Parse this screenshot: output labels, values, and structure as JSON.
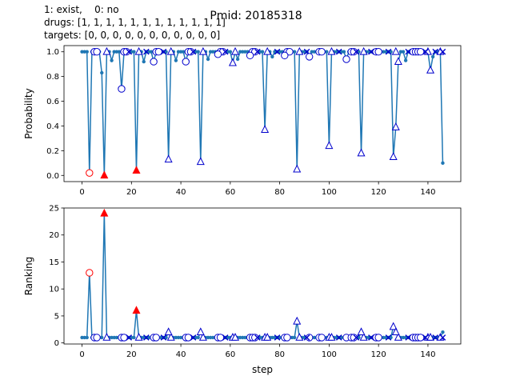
{
  "header": {
    "line1": "1: exist,    0: no",
    "line2": "drugs: [1, 1, 1, 1, 1, 1, 1, 1, 1, 1, 1, 1]",
    "line3": "targets: [0, 0, 0, 0, 0, 0, 0, 0, 0, 0, 0]",
    "title": "Pmid: 20185318"
  },
  "colors": {
    "line": "#1f77b4",
    "marker_blue": "#0000cc",
    "marker_red": "#ff0000"
  },
  "chart_data": [
    {
      "type": "line",
      "ylabel": "Probability",
      "xlabel": "",
      "xlim": [
        -7.3,
        153.3
      ],
      "ylim": [
        -0.05,
        1.05
      ],
      "xticks": [
        0,
        20,
        40,
        60,
        80,
        100,
        120,
        140
      ],
      "yticks": [
        0.0,
        0.2,
        0.4,
        0.6,
        0.8,
        1.0
      ],
      "ytick_labels": [
        "0.0",
        "0.2",
        "0.4",
        "0.6",
        "0.8",
        "1.0"
      ],
      "dips": [
        [
          3,
          0.02
        ],
        [
          8,
          0.83
        ],
        [
          9,
          0.0
        ],
        [
          12,
          0.93
        ],
        [
          16,
          0.7
        ],
        [
          22,
          0.04
        ],
        [
          25,
          0.92
        ],
        [
          29,
          0.92
        ],
        [
          35,
          0.13
        ],
        [
          38,
          0.93
        ],
        [
          42,
          0.92
        ],
        [
          48,
          0.11
        ],
        [
          51,
          0.94
        ],
        [
          55,
          0.98
        ],
        [
          61,
          0.91
        ],
        [
          63,
          0.94
        ],
        [
          68,
          0.97
        ],
        [
          74,
          0.37
        ],
        [
          77,
          0.96
        ],
        [
          82,
          0.97
        ],
        [
          87,
          0.05
        ],
        [
          92,
          0.96
        ],
        [
          100,
          0.24
        ],
        [
          107,
          0.94
        ],
        [
          113,
          0.18
        ],
        [
          126,
          0.15
        ],
        [
          127,
          0.39
        ],
        [
          128,
          0.92
        ],
        [
          131,
          0.93
        ],
        [
          141,
          0.85
        ],
        [
          142,
          0.96
        ],
        [
          146,
          0.1
        ]
      ],
      "markers": [
        {
          "shape": "circle",
          "color": "red",
          "x": 3,
          "y": 0.02
        },
        {
          "shape": "triangle",
          "color": "red",
          "x": 9,
          "y": 0.0
        },
        {
          "shape": "triangle",
          "color": "red",
          "x": 22,
          "y": 0.04
        },
        {
          "shape": "circle",
          "color": "blue",
          "x": 16,
          "y": 0.7
        },
        {
          "shape": "circle",
          "color": "blue",
          "x": 29,
          "y": 0.92
        },
        {
          "shape": "circle",
          "color": "blue",
          "x": 42,
          "y": 0.92
        },
        {
          "shape": "circle",
          "color": "blue",
          "x": 55,
          "y": 0.98
        },
        {
          "shape": "circle",
          "color": "blue",
          "x": 68,
          "y": 0.97
        },
        {
          "shape": "circle",
          "color": "blue",
          "x": 82,
          "y": 0.97
        },
        {
          "shape": "circle",
          "color": "blue",
          "x": 92,
          "y": 0.96
        },
        {
          "shape": "circle",
          "color": "blue",
          "x": 107,
          "y": 0.94
        },
        {
          "shape": "triangle",
          "color": "blue",
          "x": 35,
          "y": 0.13
        },
        {
          "shape": "triangle",
          "color": "blue",
          "x": 48,
          "y": 0.11
        },
        {
          "shape": "triangle",
          "color": "blue",
          "x": 61,
          "y": 0.91
        },
        {
          "shape": "triangle",
          "color": "blue",
          "x": 74,
          "y": 0.37
        },
        {
          "shape": "triangle",
          "color": "blue",
          "x": 87,
          "y": 0.05
        },
        {
          "shape": "triangle",
          "color": "blue",
          "x": 100,
          "y": 0.24
        },
        {
          "shape": "triangle",
          "color": "blue",
          "x": 113,
          "y": 0.18
        },
        {
          "shape": "triangle",
          "color": "blue",
          "x": 126,
          "y": 0.15
        },
        {
          "shape": "triangle",
          "color": "blue",
          "x": 127,
          "y": 0.39
        },
        {
          "shape": "triangle",
          "color": "blue",
          "x": 128,
          "y": 0.92
        },
        {
          "shape": "triangle",
          "color": "blue",
          "x": 141,
          "y": 0.85
        }
      ],
      "top_markers": [
        {
          "shape": "circle",
          "xs": [
            5,
            6,
            17,
            18,
            30,
            31,
            43,
            44,
            56,
            57,
            69,
            70,
            83,
            84,
            96,
            97,
            109,
            110,
            119,
            120,
            134,
            135,
            136,
            137
          ]
        },
        {
          "shape": "triangle",
          "xs": [
            10,
            23,
            36,
            49,
            62,
            75,
            88,
            101,
            114,
            127,
            140,
            145
          ]
        },
        {
          "shape": "x",
          "xs": [
            19,
            26,
            33,
            45,
            58,
            71,
            79,
            91,
            104,
            111,
            117,
            124,
            132,
            139,
            143,
            146
          ]
        }
      ]
    },
    {
      "type": "line",
      "ylabel": "Ranking",
      "xlabel": "step",
      "xlim": [
        -7.3,
        153.3
      ],
      "ylim": [
        -0.2,
        25.0
      ],
      "xticks": [
        0,
        20,
        40,
        60,
        80,
        100,
        120,
        140
      ],
      "yticks": [
        0,
        5,
        10,
        15,
        20,
        25
      ],
      "ytick_labels": [
        "0",
        "5",
        "10",
        "15",
        "20",
        "25"
      ],
      "peaks": [
        [
          3,
          13
        ],
        [
          9,
          24
        ],
        [
          22,
          6
        ],
        [
          35,
          2
        ],
        [
          48,
          2
        ],
        [
          87,
          4
        ],
        [
          113,
          2
        ],
        [
          126,
          3
        ],
        [
          127,
          2
        ],
        [
          146,
          2
        ]
      ],
      "markers": [
        {
          "shape": "circle",
          "color": "red",
          "x": 3,
          "y": 13
        },
        {
          "shape": "triangle",
          "color": "red",
          "x": 9,
          "y": 24
        },
        {
          "shape": "triangle",
          "color": "red",
          "x": 22,
          "y": 6
        },
        {
          "shape": "triangle",
          "color": "blue",
          "x": 35,
          "y": 2
        },
        {
          "shape": "triangle",
          "color": "blue",
          "x": 48,
          "y": 2
        },
        {
          "shape": "triangle",
          "color": "blue",
          "x": 87,
          "y": 4
        },
        {
          "shape": "triangle",
          "color": "blue",
          "x": 113,
          "y": 2
        },
        {
          "shape": "triangle",
          "color": "blue",
          "x": 126,
          "y": 3
        },
        {
          "shape": "triangle",
          "color": "blue",
          "x": 127,
          "y": 2
        }
      ],
      "base_markers": [
        {
          "shape": "circle",
          "xs": [
            5,
            6,
            16,
            17,
            29,
            30,
            42,
            43,
            55,
            56,
            68,
            69,
            70,
            82,
            83,
            92,
            96,
            97,
            107,
            109,
            110,
            119,
            120,
            134,
            135,
            136,
            137
          ]
        },
        {
          "shape": "triangle",
          "xs": [
            10,
            23,
            36,
            49,
            61,
            62,
            74,
            75,
            88,
            100,
            101,
            114,
            128,
            140,
            141,
            145
          ]
        },
        {
          "shape": "x",
          "xs": [
            19,
            26,
            33,
            45,
            58,
            71,
            79,
            91,
            104,
            111,
            117,
            124,
            132,
            139,
            143,
            146
          ]
        }
      ]
    }
  ]
}
